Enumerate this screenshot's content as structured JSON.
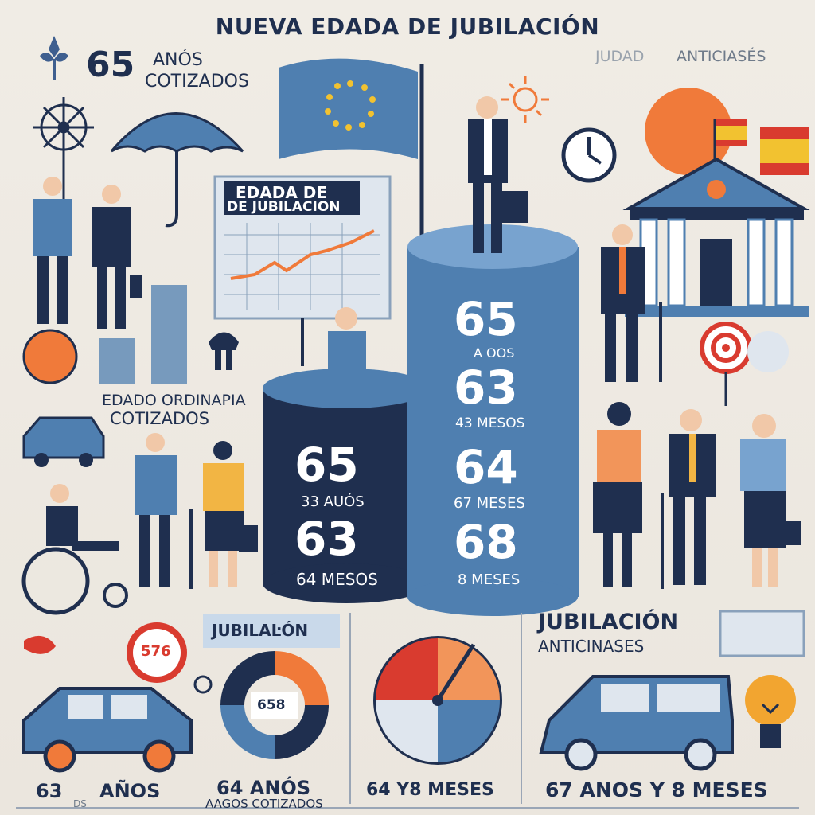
{
  "title": "NUEVA EDADA DE JUBILACIÓN",
  "top_left": {
    "number": "65",
    "unit": "ANÓS",
    "sub": "COTIZADOS"
  },
  "top_right": {
    "text1": "JUDAD",
    "text2": "ANTICIASÉS"
  },
  "board": {
    "line1": "EDADA DE",
    "line2": "DE JUBILACION"
  },
  "left_caption": {
    "line1": "EDADO ORDINAPIA",
    "line2": "COTIZADOS"
  },
  "cylinder_left": {
    "n1": "65",
    "l1": "33 AUÓS",
    "n2": "63",
    "l2": "64 MESOS"
  },
  "cylinder_right": {
    "n1": "65",
    "l1": "A OOS",
    "n2": "63",
    "l2": "43 MESOS",
    "n3": "64",
    "l3": "67 MESES",
    "n4": "68",
    "l4": "8 MESES"
  },
  "badge": "576",
  "jubilacion_label": "JUBILAĿÓN",
  "donut_center": "658",
  "right_heading": {
    "line1": "JUBILACIÓN",
    "line2": "ANTICINASES"
  },
  "bottom": {
    "b1": "63",
    "b1b": "AÑOS",
    "b1c": "DS",
    "b2": "64 ANÓS",
    "b2b": "AAGOS COTIZADOS",
    "b3": "64 Y8 MESES",
    "b4": "67 ANOS Y 8 MESES"
  },
  "colors": {
    "navy": "#1f2f4f",
    "blue": "#4f7fb0",
    "orange": "#f07a3a",
    "red": "#d93b2f",
    "cream": "#efeae2"
  }
}
